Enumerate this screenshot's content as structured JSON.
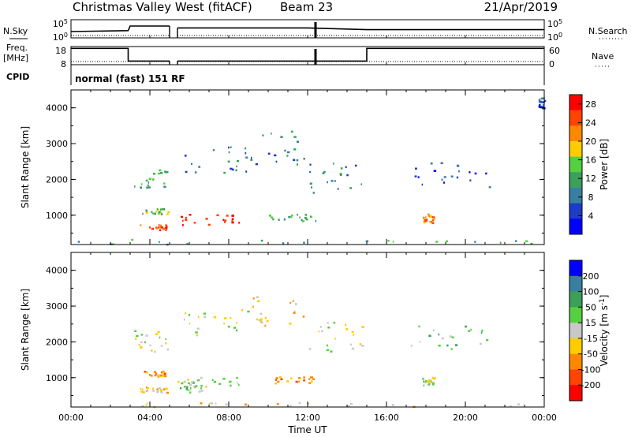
{
  "header": {
    "station": "Christmas Valley West (fitACF)",
    "beam": "Beam 23",
    "date": "21/Apr/2019"
  },
  "labels": {
    "nsky": "N.Sky",
    "nsearch": "N.Search",
    "freq_line1": "Freq.",
    "freq_line2": "[MHz]",
    "nave": "Nave",
    "cpid": "CPID",
    "cpid_value": "normal (fast) 151 RF"
  },
  "colors": {
    "power": [
      "#0000ff",
      "#1c3cc6",
      "#3a7fa0",
      "#3aa05a",
      "#55d040",
      "#ffcc00",
      "#ff8800",
      "#ff4400",
      "#ff0000"
    ],
    "velocity": [
      "#ff0000",
      "#ff4400",
      "#ff8800",
      "#ffcc00",
      "#c8c8c8",
      "#55d040",
      "#3aa05a",
      "#3a7fa0",
      "#0000ff"
    ]
  },
  "chart_data": [
    {
      "type": "line",
      "panel": "noise",
      "ylabel_left": "N.Sky",
      "ylabel_right": "N.Search",
      "yticks_left": [
        "10^5",
        "10^0"
      ],
      "yticks_right": [
        "10^5",
        "10^0"
      ],
      "series": [
        {
          "x": [
            0,
            2.9,
            3.0,
            5.0,
            5.4,
            12.0,
            15.0,
            24.0
          ],
          "values": [
            0.35,
            0.4,
            0.65,
            0.65,
            0.55,
            0.55,
            0.45,
            0.45
          ]
        }
      ],
      "gap": [
        5.0,
        5.4
      ]
    },
    {
      "type": "line",
      "panel": "frequency",
      "ylabel_left": "Freq. [MHz]",
      "ylabel_right": "Nave",
      "yticks_left": [
        "18",
        "8"
      ],
      "yticks_right": [
        "60",
        "0"
      ],
      "series": [
        {
          "x": [
            0,
            2.9,
            2.9,
            15.0,
            15.0,
            24.0
          ],
          "values": [
            17,
            17,
            10,
            10,
            17,
            17
          ]
        }
      ],
      "gap": [
        5.0,
        5.4
      ]
    },
    {
      "type": "heatmap",
      "panel": "power",
      "xlabel": "",
      "ylabel": "Slant Range [km]",
      "xlim": [
        0,
        24
      ],
      "ylim": [
        180,
        4500
      ],
      "yticks": [
        "1000",
        "2000",
        "3000",
        "4000"
      ],
      "colorbar_label": "Power [dB]",
      "colorbar_ticks": [
        "4",
        "8",
        "12",
        "16",
        "20",
        "24",
        "28"
      ],
      "colorbar_range": [
        0,
        30
      ],
      "regions": [
        {
          "t": [
            3.5,
            4.9
          ],
          "r": [
            600,
            760
          ],
          "level": 7
        },
        {
          "t": [
            5.4,
            8.5
          ],
          "r": [
            750,
            1050
          ],
          "level": 8
        },
        {
          "t": [
            3.5,
            4.9
          ],
          "r": [
            1050,
            1200
          ],
          "level": 4
        },
        {
          "t": [
            3.2,
            4.9
          ],
          "r": [
            1750,
            2350
          ],
          "level": 3
        },
        {
          "t": [
            5.6,
            9.0
          ],
          "r": [
            2200,
            3000
          ],
          "level": 2
        },
        {
          "t": [
            9.0,
            11.8
          ],
          "r": [
            2400,
            3400
          ],
          "level": 2
        },
        {
          "t": [
            11.8,
            14.8
          ],
          "r": [
            1600,
            2600
          ],
          "level": 2
        },
        {
          "t": [
            10.0,
            12.5
          ],
          "r": [
            850,
            1050
          ],
          "level": 3
        },
        {
          "t": [
            17.8,
            18.4
          ],
          "r": [
            800,
            1050
          ],
          "level": 6
        },
        {
          "t": [
            17.2,
            21.5
          ],
          "r": [
            1800,
            2500
          ],
          "level": 1
        },
        {
          "t": [
            0,
            24
          ],
          "r": [
            200,
            350
          ],
          "level": 3
        },
        {
          "t": [
            23.7,
            24
          ],
          "r": [
            4000,
            4300
          ],
          "level": 1
        }
      ]
    },
    {
      "type": "heatmap",
      "panel": "velocity",
      "xlabel": "Time UT",
      "ylabel": "Slant Range [km]",
      "xlim": [
        0,
        24
      ],
      "ylim": [
        180,
        4500
      ],
      "xticks": [
        "00:00",
        "04:00",
        "08:00",
        "12:00",
        "16:00",
        "20:00",
        "00:00"
      ],
      "yticks": [
        "1000",
        "2000",
        "3000",
        "4000"
      ],
      "colorbar_label": "Velocity [m s^-1]",
      "colorbar_ticks": [
        "200",
        "100",
        "50",
        "15",
        "-15",
        "-50",
        "-100",
        "-200"
      ],
      "colorbar_range": [
        -250,
        250
      ],
      "regions": [
        {
          "t": [
            3.5,
            4.9
          ],
          "r": [
            600,
            760
          ],
          "level": 3
        },
        {
          "t": [
            5.4,
            8.5
          ],
          "r": [
            750,
            1050
          ],
          "level": 4
        },
        {
          "t": [
            5.4,
            6.6
          ],
          "r": [
            600,
            900
          ],
          "level": 5
        },
        {
          "t": [
            3.5,
            4.9
          ],
          "r": [
            1050,
            1200
          ],
          "level": 2
        },
        {
          "t": [
            3.2,
            4.9
          ],
          "r": [
            1750,
            2350
          ],
          "level": 4
        },
        {
          "t": [
            5.6,
            9.0
          ],
          "r": [
            2200,
            3000
          ],
          "level": 4
        },
        {
          "t": [
            9.0,
            11.8
          ],
          "r": [
            2400,
            3400
          ],
          "level": 3
        },
        {
          "t": [
            11.8,
            14.8
          ],
          "r": [
            1600,
            2600
          ],
          "level": 4
        },
        {
          "t": [
            10.0,
            12.5
          ],
          "r": [
            850,
            1050
          ],
          "level": 2
        },
        {
          "t": [
            17.8,
            18.4
          ],
          "r": [
            800,
            1050
          ],
          "level": 4
        },
        {
          "t": [
            17.2,
            21.5
          ],
          "r": [
            1800,
            2500
          ],
          "level": 5
        },
        {
          "t": [
            0,
            24
          ],
          "r": [
            200,
            350
          ],
          "level": 3
        }
      ]
    }
  ]
}
